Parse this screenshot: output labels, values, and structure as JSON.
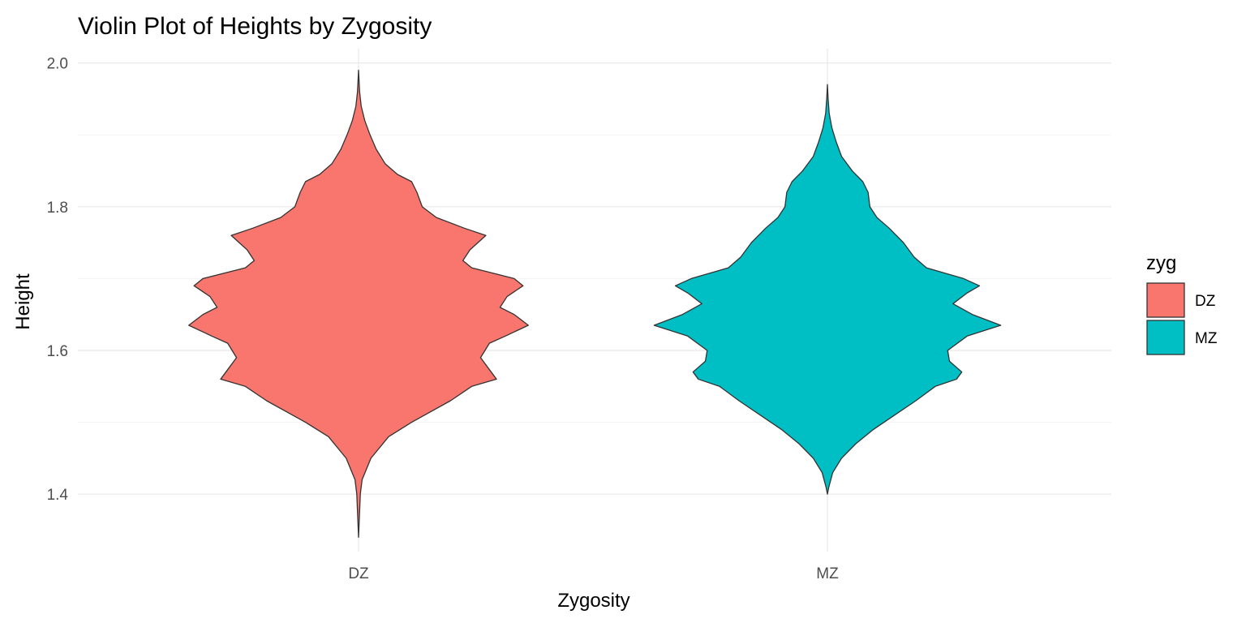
{
  "chart_data": {
    "type": "violin",
    "title": "Violin Plot of Heights by Zygosity",
    "xlabel": "Zygosity",
    "ylabel": "Height",
    "categories": [
      "DZ",
      "MZ"
    ],
    "ylim": [
      1.32,
      2.0
    ],
    "yticks": [
      "1.4",
      "1.6",
      "1.8",
      "2.0"
    ],
    "ytick_values": [
      1.4,
      1.6,
      1.8,
      2.0
    ],
    "grid": true,
    "legend": {
      "title": "zyg",
      "position": "right",
      "entries": [
        {
          "label": "DZ",
          "color": "#F8766D"
        },
        {
          "label": "MZ",
          "color": "#00BFC4"
        }
      ]
    },
    "series": [
      {
        "name": "DZ",
        "color": "#F8766D",
        "density_profile": [
          [
            1.34,
            0.0
          ],
          [
            1.4,
            0.01
          ],
          [
            1.42,
            0.02
          ],
          [
            1.45,
            0.07
          ],
          [
            1.48,
            0.17
          ],
          [
            1.5,
            0.3
          ],
          [
            1.53,
            0.52
          ],
          [
            1.55,
            0.64
          ],
          [
            1.56,
            0.78
          ],
          [
            1.57,
            0.75
          ],
          [
            1.59,
            0.69
          ],
          [
            1.61,
            0.74
          ],
          [
            1.62,
            0.83
          ],
          [
            1.635,
            0.96
          ],
          [
            1.65,
            0.88
          ],
          [
            1.66,
            0.8
          ],
          [
            1.675,
            0.84
          ],
          [
            1.69,
            0.93
          ],
          [
            1.7,
            0.88
          ],
          [
            1.715,
            0.64
          ],
          [
            1.725,
            0.59
          ],
          [
            1.74,
            0.63
          ],
          [
            1.76,
            0.72
          ],
          [
            1.77,
            0.6
          ],
          [
            1.785,
            0.44
          ],
          [
            1.8,
            0.36
          ],
          [
            1.82,
            0.33
          ],
          [
            1.835,
            0.3
          ],
          [
            1.845,
            0.22
          ],
          [
            1.86,
            0.15
          ],
          [
            1.88,
            0.1
          ],
          [
            1.9,
            0.065
          ],
          [
            1.92,
            0.035
          ],
          [
            1.94,
            0.015
          ],
          [
            1.96,
            0.006
          ],
          [
            1.99,
            0.0
          ]
        ]
      },
      {
        "name": "MZ",
        "color": "#00BFC4",
        "density_profile": [
          [
            1.4,
            0.0
          ],
          [
            1.41,
            0.008
          ],
          [
            1.43,
            0.03
          ],
          [
            1.45,
            0.08
          ],
          [
            1.47,
            0.16
          ],
          [
            1.49,
            0.26
          ],
          [
            1.51,
            0.38
          ],
          [
            1.53,
            0.5
          ],
          [
            1.55,
            0.61
          ],
          [
            1.56,
            0.73
          ],
          [
            1.57,
            0.76
          ],
          [
            1.585,
            0.69
          ],
          [
            1.6,
            0.68
          ],
          [
            1.62,
            0.79
          ],
          [
            1.635,
            0.98
          ],
          [
            1.65,
            0.82
          ],
          [
            1.665,
            0.71
          ],
          [
            1.68,
            0.79
          ],
          [
            1.69,
            0.86
          ],
          [
            1.7,
            0.77
          ],
          [
            1.715,
            0.56
          ],
          [
            1.73,
            0.49
          ],
          [
            1.75,
            0.43
          ],
          [
            1.77,
            0.35
          ],
          [
            1.785,
            0.28
          ],
          [
            1.8,
            0.24
          ],
          [
            1.82,
            0.23
          ],
          [
            1.835,
            0.2
          ],
          [
            1.85,
            0.14
          ],
          [
            1.87,
            0.08
          ],
          [
            1.89,
            0.05
          ],
          [
            1.91,
            0.025
          ],
          [
            1.93,
            0.01
          ],
          [
            1.95,
            0.004
          ],
          [
            1.97,
            0.0
          ]
        ]
      }
    ]
  }
}
